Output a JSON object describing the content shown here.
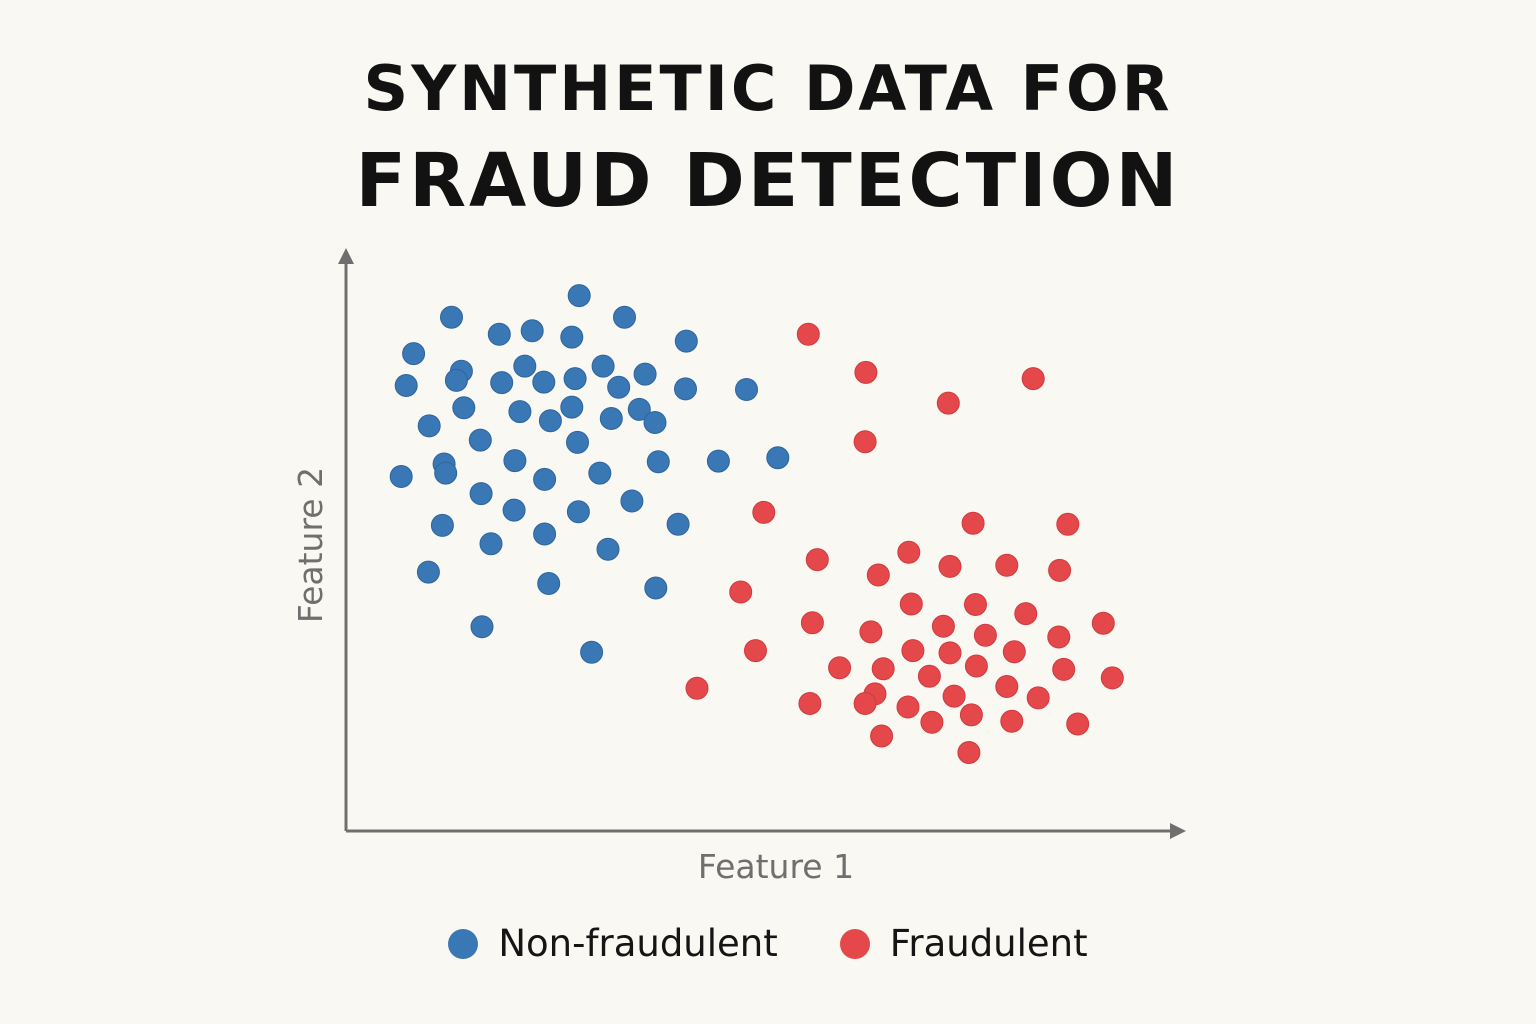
{
  "title": {
    "line1": "SYNTHETIC DATA FOR",
    "line2": "FRAUD DETECTION"
  },
  "colors": {
    "non_fraud": "#3a77b5",
    "fraud": "#e5484b",
    "axis": "#6f6f6f",
    "background": "#faf8f3"
  },
  "chart_data": {
    "type": "scatter",
    "title": "SYNTHETIC DATA FOR FRAUD DETECTION",
    "xlabel": "Feature 1",
    "ylabel": "Feature 2",
    "xlim": [
      0,
      100
    ],
    "ylim": [
      0,
      100
    ],
    "grid": false,
    "legend_position": "bottom",
    "series": [
      {
        "name": "Non-fraudulent",
        "color": "#3a77b5",
        "points": [
          [
            28.3,
            94.1
          ],
          [
            12.8,
            90.3
          ],
          [
            33.8,
            90.3
          ],
          [
            18.6,
            87.3
          ],
          [
            22.6,
            87.9
          ],
          [
            27.4,
            86.8
          ],
          [
            41.3,
            86.1
          ],
          [
            8.2,
            83.9
          ],
          [
            14.0,
            80.8
          ],
          [
            21.7,
            81.7
          ],
          [
            31.2,
            81.7
          ],
          [
            36.3,
            80.3
          ],
          [
            7.3,
            78.3
          ],
          [
            13.4,
            79.2
          ],
          [
            18.9,
            78.8
          ],
          [
            24.0,
            78.9
          ],
          [
            27.8,
            79.5
          ],
          [
            33.1,
            78.0
          ],
          [
            41.2,
            77.7
          ],
          [
            48.6,
            77.6
          ],
          [
            14.3,
            74.4
          ],
          [
            21.1,
            73.7
          ],
          [
            27.4,
            74.5
          ],
          [
            35.6,
            74.1
          ],
          [
            10.1,
            71.2
          ],
          [
            24.8,
            72.1
          ],
          [
            32.2,
            72.5
          ],
          [
            37.5,
            71.8
          ],
          [
            16.3,
            68.7
          ],
          [
            28.1,
            68.3
          ],
          [
            52.4,
            65.6
          ],
          [
            45.2,
            65.0
          ],
          [
            37.9,
            64.9
          ],
          [
            20.5,
            65.1
          ],
          [
            11.9,
            64.5
          ],
          [
            6.7,
            62.3
          ],
          [
            12.1,
            62.9
          ],
          [
            30.8,
            62.9
          ],
          [
            24.1,
            61.8
          ],
          [
            16.4,
            59.3
          ],
          [
            34.7,
            58.0
          ],
          [
            20.4,
            56.4
          ],
          [
            28.2,
            56.1
          ],
          [
            11.7,
            53.7
          ],
          [
            40.3,
            53.9
          ],
          [
            24.1,
            52.2
          ],
          [
            17.6,
            50.5
          ],
          [
            31.8,
            49.5
          ],
          [
            10.0,
            45.5
          ],
          [
            24.6,
            43.5
          ],
          [
            37.6,
            42.7
          ],
          [
            16.5,
            35.9
          ],
          [
            29.8,
            31.4
          ]
        ]
      },
      {
        "name": "Fraudulent",
        "color": "#e5484b",
        "points": [
          [
            56.1,
            87.3
          ],
          [
            63.1,
            80.6
          ],
          [
            83.4,
            79.5
          ],
          [
            73.1,
            75.2
          ],
          [
            63.0,
            68.4
          ],
          [
            50.7,
            56.0
          ],
          [
            76.1,
            54.1
          ],
          [
            87.6,
            53.9
          ],
          [
            68.3,
            49.0
          ],
          [
            57.2,
            47.7
          ],
          [
            73.3,
            46.5
          ],
          [
            80.2,
            46.7
          ],
          [
            86.6,
            45.8
          ],
          [
            64.6,
            45.0
          ],
          [
            47.9,
            42.0
          ],
          [
            68.6,
            39.9
          ],
          [
            76.4,
            39.8
          ],
          [
            82.5,
            38.2
          ],
          [
            56.6,
            36.6
          ],
          [
            72.5,
            36.0
          ],
          [
            63.7,
            35.0
          ],
          [
            91.9,
            36.5
          ],
          [
            77.6,
            34.4
          ],
          [
            86.5,
            34.1
          ],
          [
            68.8,
            31.7
          ],
          [
            73.3,
            31.3
          ],
          [
            81.1,
            31.5
          ],
          [
            49.7,
            31.7
          ],
          [
            59.9,
            28.7
          ],
          [
            65.2,
            28.5
          ],
          [
            76.5,
            29.0
          ],
          [
            87.1,
            28.4
          ],
          [
            70.8,
            27.2
          ],
          [
            93.0,
            26.9
          ],
          [
            80.2,
            25.4
          ],
          [
            42.6,
            25.1
          ],
          [
            64.2,
            24.1
          ],
          [
            73.8,
            23.7
          ],
          [
            84.0,
            23.4
          ],
          [
            56.3,
            22.4
          ],
          [
            63.0,
            22.4
          ],
          [
            68.2,
            21.8
          ],
          [
            75.9,
            20.4
          ],
          [
            71.1,
            19.1
          ],
          [
            80.8,
            19.3
          ],
          [
            88.8,
            18.8
          ],
          [
            65.0,
            16.7
          ],
          [
            75.6,
            13.8
          ]
        ]
      }
    ]
  }
}
